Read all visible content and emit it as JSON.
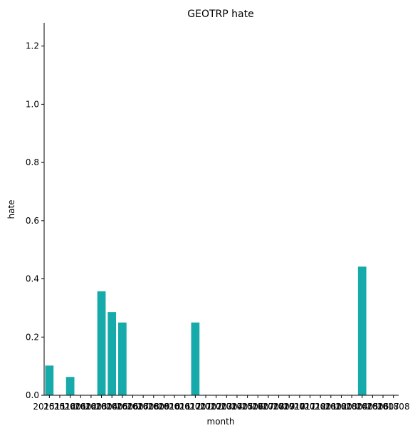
{
  "chart_data": {
    "type": "bar",
    "title": "GEOTRP hate",
    "xlabel": "month",
    "ylabel": "hate",
    "ylim": [
      0,
      1.28
    ],
    "yticks": [
      "0.0",
      "0.2",
      "0.4",
      "0.6",
      "0.8",
      "1.0",
      "1.2"
    ],
    "ytick_values": [
      0,
      0.2,
      0.4,
      0.6,
      0.8,
      1.0,
      1.2
    ],
    "grid": false,
    "bar_color": "#17aaaa",
    "categories": [
      "201511",
      "201512",
      "201601",
      "201602",
      "201603",
      "201604",
      "201605",
      "201606",
      "201607",
      "201608",
      "201609",
      "201610",
      "201611",
      "201612",
      "201701",
      "201702",
      "201703",
      "201704",
      "201705",
      "201706",
      "201707",
      "201708",
      "201709",
      "201710",
      "201711",
      "201712",
      "201801",
      "201802",
      "201803",
      "201804",
      "201805",
      "201806",
      "201807",
      "201808"
    ],
    "values": [
      0.102,
      0,
      0.063,
      0,
      0,
      0.357,
      0.286,
      0.25,
      0,
      0,
      0,
      0,
      0,
      0,
      0.25,
      0,
      0,
      0,
      0,
      0,
      0,
      0,
      0,
      0,
      0,
      0,
      0,
      0,
      0,
      0,
      0.442,
      0,
      0,
      0
    ]
  }
}
